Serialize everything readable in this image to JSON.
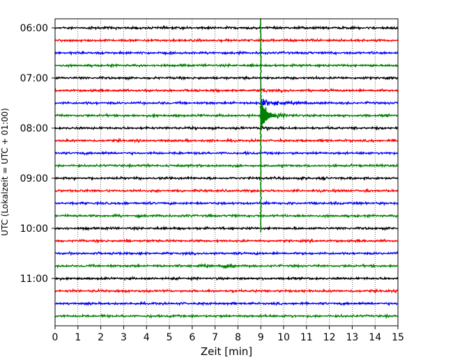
{
  "chart_data": {
    "type": "line",
    "xlabel": "Zeit  [min]",
    "ylabel": "UTC (Lokalzeit = UTC + 01:00)",
    "xlim": [
      0,
      15
    ],
    "x_ticks": [
      0,
      1,
      2,
      3,
      4,
      5,
      6,
      7,
      8,
      9,
      10,
      11,
      12,
      13,
      14,
      15
    ],
    "y_tick_labels": [
      "06:00",
      "07:00",
      "08:00",
      "09:00",
      "10:00",
      "11:00"
    ],
    "grid": "vertical dotted at each minute",
    "trace_interval_minutes": 15,
    "trace_start_times": [
      "06:00",
      "06:15",
      "06:30",
      "06:45",
      "07:00",
      "07:15",
      "07:30",
      "07:45",
      "08:00",
      "08:15",
      "08:30",
      "08:45",
      "09:00",
      "09:15",
      "09:30",
      "09:45",
      "10:00",
      "10:15",
      "10:30",
      "10:45",
      "11:00",
      "11:15",
      "11:30",
      "11:45"
    ],
    "trace_colors": [
      "#000000",
      "#ff0000",
      "#0000ff",
      "#008000"
    ],
    "event": {
      "description_time_min": 9.0,
      "first_arrival_trace": "07:15",
      "max_amplitude_trace": "07:45",
      "coda_end_trace": "10:00"
    },
    "annotations": [
      {
        "trace": "10:45",
        "x_min": 7.6,
        "kind": "small burst"
      }
    ]
  }
}
